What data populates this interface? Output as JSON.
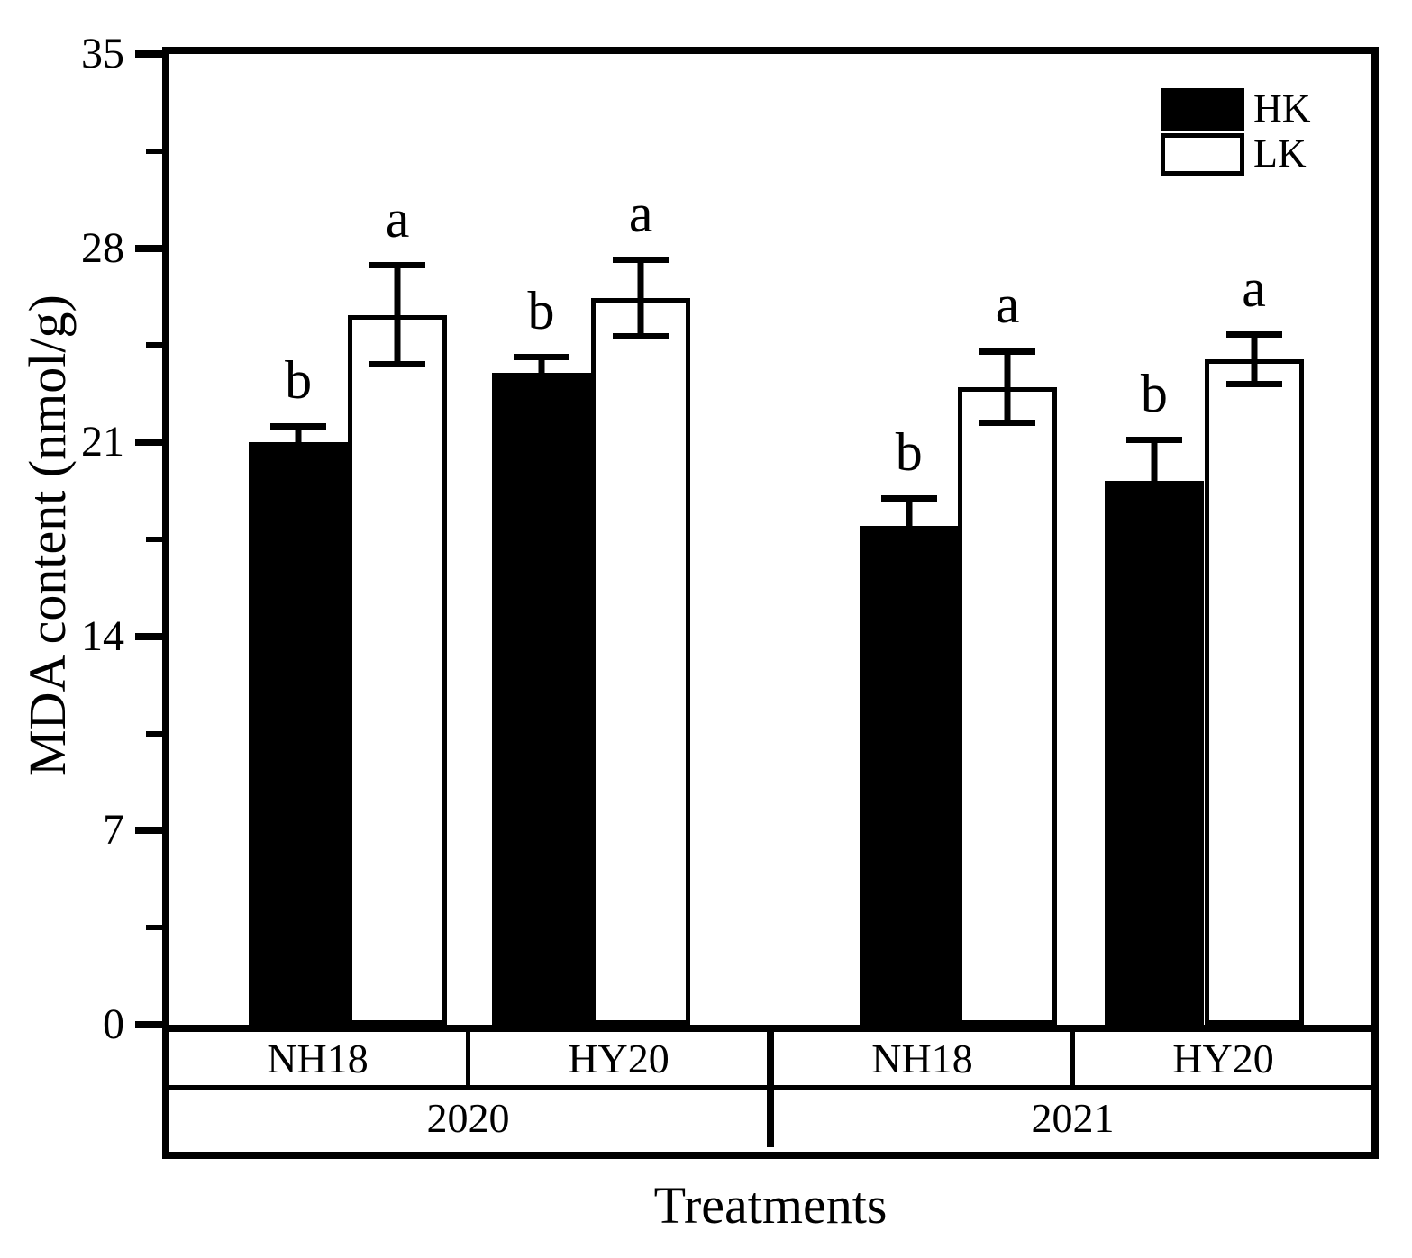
{
  "figure": {
    "background": "#ffffff",
    "axis_color": "#000000"
  },
  "chart_data": {
    "type": "bar",
    "title": "",
    "xlabel": "Treatments",
    "ylabel": "MDA content (nmol/g)",
    "ylim": [
      0,
      35
    ],
    "yticks_major": [
      0,
      7,
      14,
      21,
      28,
      35
    ],
    "yticks_minor": [
      3.5,
      10.5,
      17.5,
      24.5,
      31.5
    ],
    "grid": false,
    "legend_position": "top-right-inside",
    "error_bars": true,
    "series": [
      {
        "name": "HK",
        "fill": "#000000"
      },
      {
        "name": "LK",
        "fill": "#ffffff"
      }
    ],
    "groups": [
      {
        "year": "2020",
        "cultivar": "NH18",
        "bars": [
          {
            "series": "HK",
            "value": 21.0,
            "error": 0.7,
            "letter": "b"
          },
          {
            "series": "LK",
            "value": 25.6,
            "error": 1.9,
            "letter": "a"
          }
        ]
      },
      {
        "year": "2020",
        "cultivar": "HY20",
        "bars": [
          {
            "series": "HK",
            "value": 23.5,
            "error": 0.7,
            "letter": "b"
          },
          {
            "series": "LK",
            "value": 26.2,
            "error": 1.5,
            "letter": "a"
          }
        ]
      },
      {
        "year": "2021",
        "cultivar": "NH18",
        "bars": [
          {
            "series": "HK",
            "value": 18.0,
            "error": 1.1,
            "letter": "b"
          },
          {
            "series": "LK",
            "value": 23.0,
            "error": 1.4,
            "letter": "a"
          }
        ]
      },
      {
        "year": "2021",
        "cultivar": "HY20",
        "bars": [
          {
            "series": "HK",
            "value": 19.6,
            "error": 1.6,
            "letter": "b"
          },
          {
            "series": "LK",
            "value": 24.0,
            "error": 1.0,
            "letter": "a"
          }
        ]
      }
    ],
    "year_spans": [
      {
        "year": "2020",
        "groups": 2
      },
      {
        "year": "2021",
        "groups": 2
      }
    ]
  }
}
